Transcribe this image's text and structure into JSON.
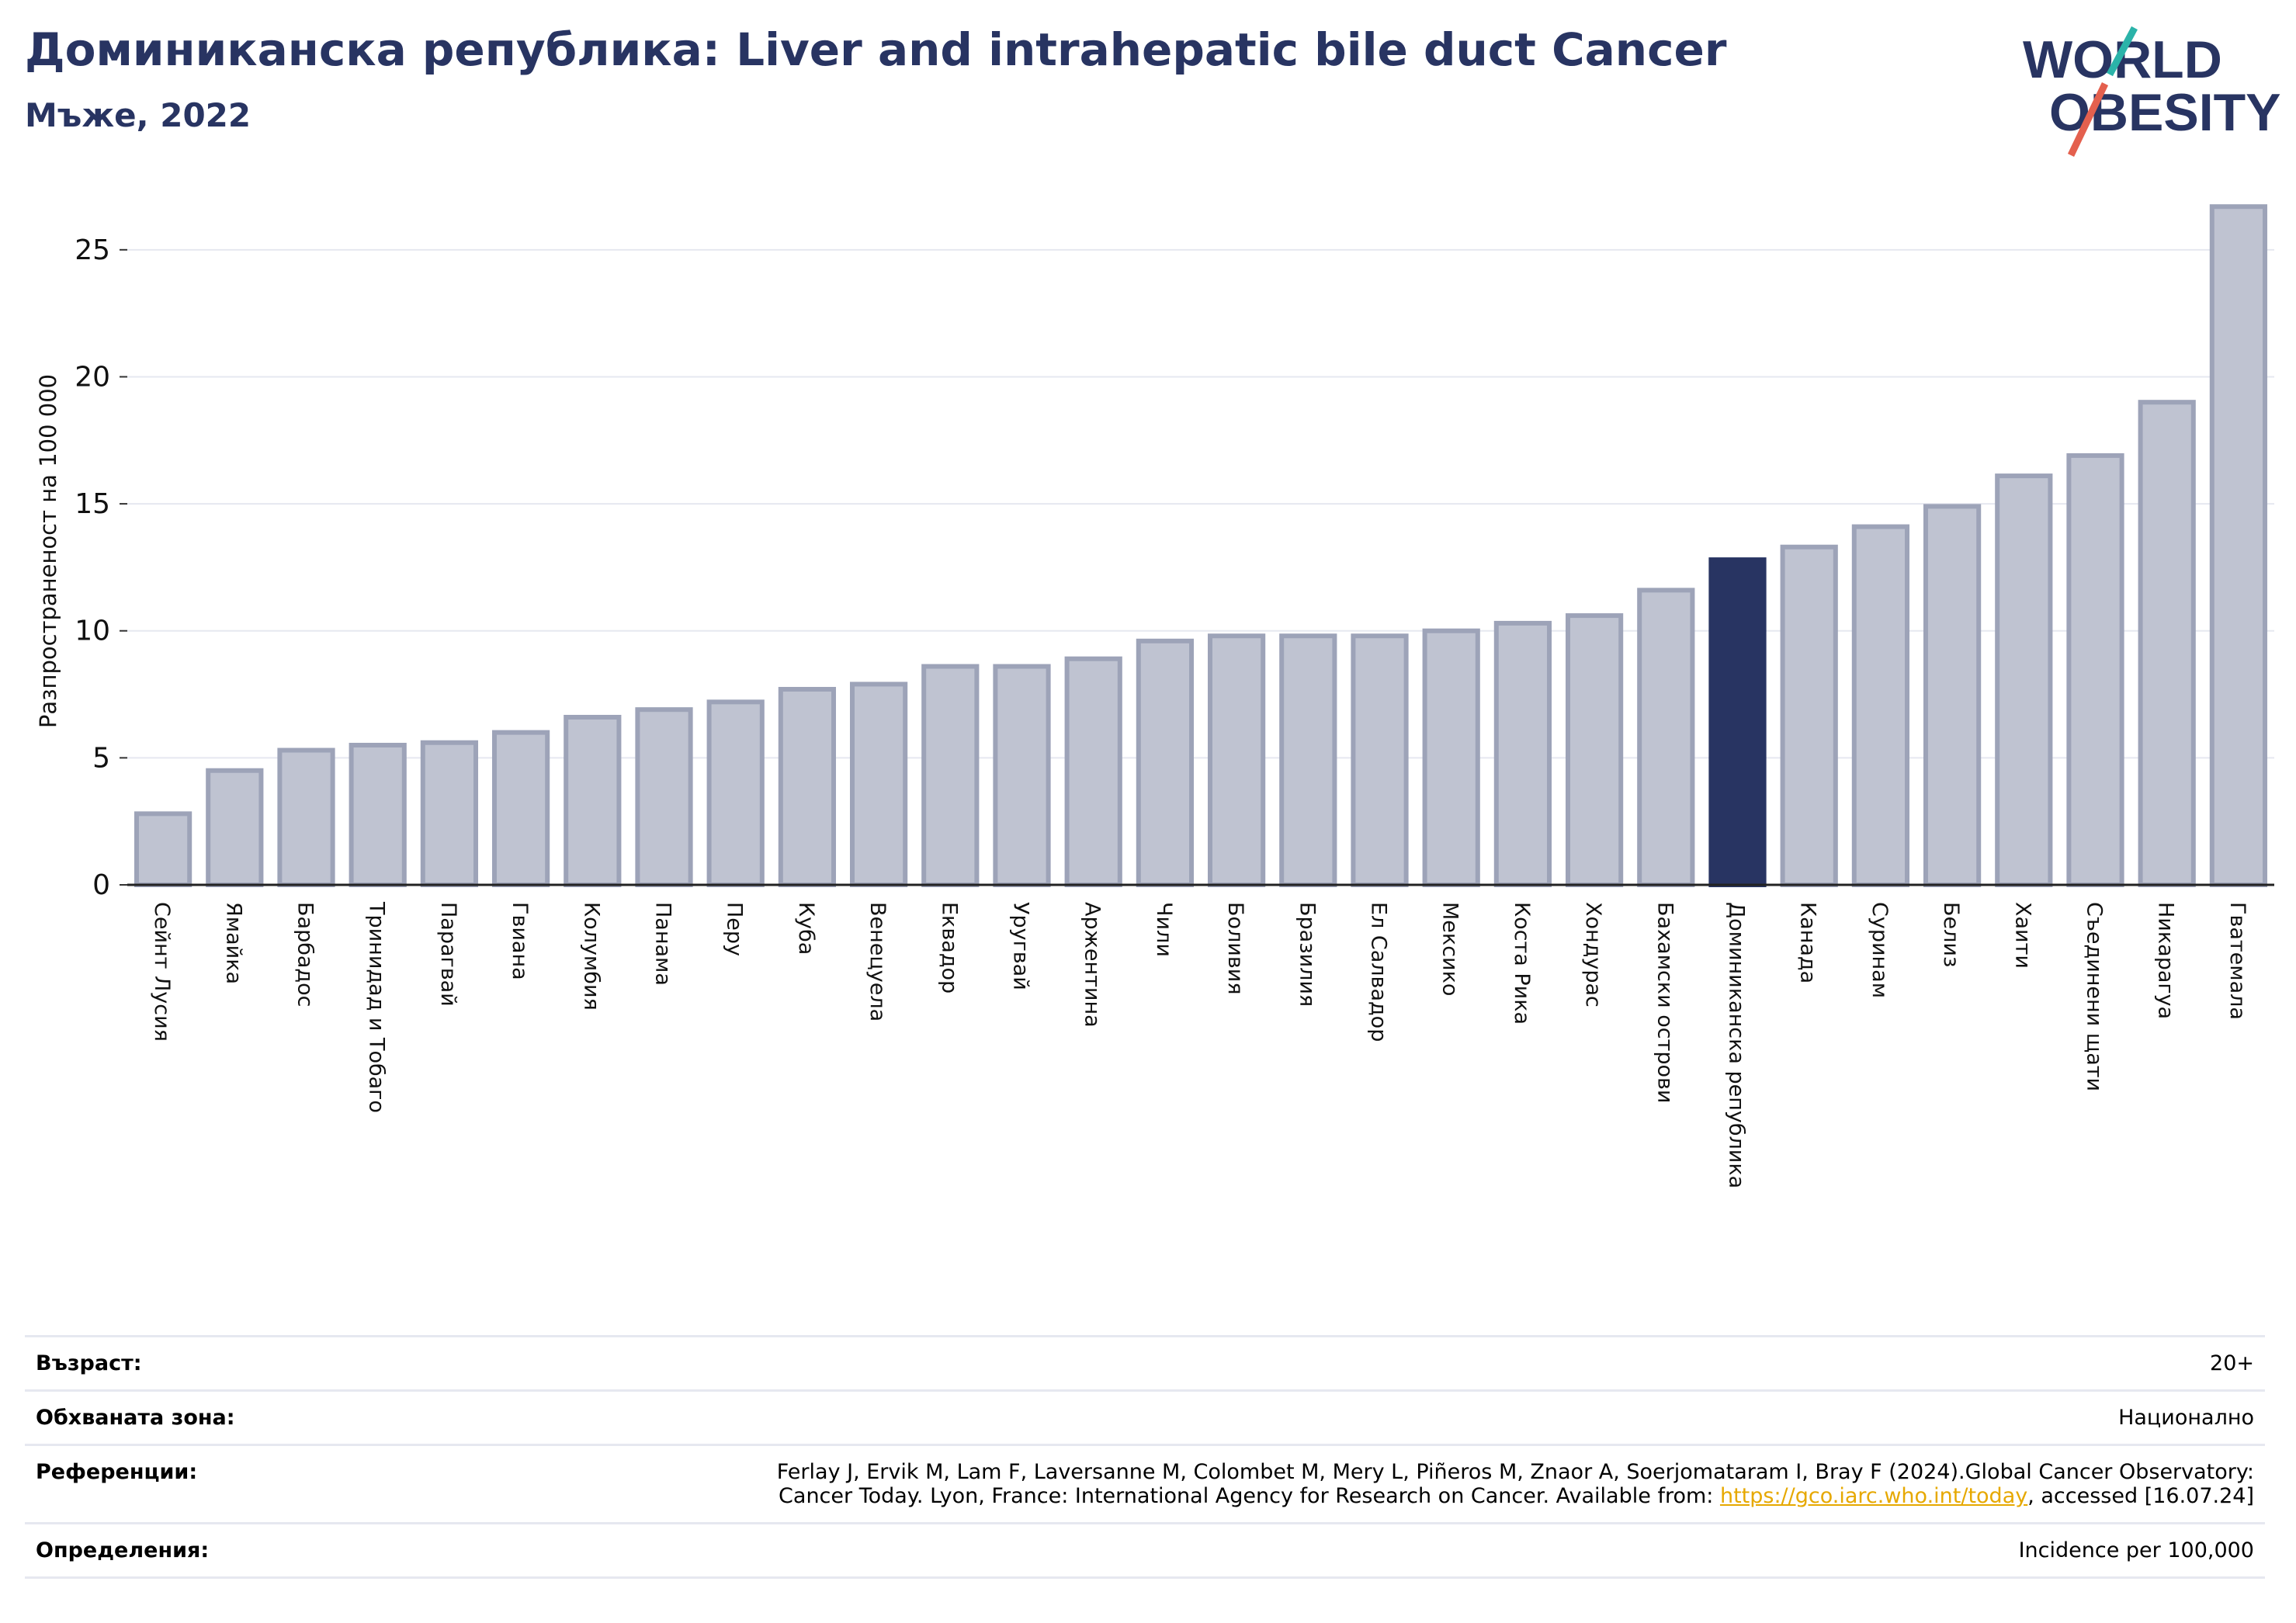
{
  "header": {
    "title": "Доминиканска република: Liver and intrahepatic bile duct Cancer",
    "subtitle": "Мъже, 2022"
  },
  "logo": {
    "line1": "WORLD",
    "line2": "OBESITY"
  },
  "colors": {
    "bar": "#bfc3d1",
    "bar_edge": "#9da3b8",
    "highlight": "#283462",
    "title": "#283462"
  },
  "chart_data": {
    "type": "bar",
    "ylabel": "Разпространеност  на 100 000",
    "ylim": [
      0,
      27.5
    ],
    "yticks": [
      0,
      5,
      10,
      15,
      20,
      25
    ],
    "grid": true,
    "highlight": "Доминиканска република",
    "categories": [
      "Сейнт Лусия",
      "Ямайка",
      "Барбадос",
      "Тринидад и Тобаго",
      "Парагвай",
      "Гвиана",
      "Колумбия",
      "Панама",
      "Перу",
      "Куба",
      "Венецуела",
      "Еквадор",
      "Уругвай",
      "Аржентина",
      "Чили",
      "Боливия",
      "Бразилия",
      "Ел Салвадор",
      "Мексико",
      "Коста Рика",
      "Хондурас",
      "Бахамски острови",
      "Доминиканска република",
      "Канада",
      "Суринам",
      "Белиз",
      "Хаити",
      "Съединени щати",
      "Никарагуа",
      "Гватемала"
    ],
    "values": [
      2.8,
      4.5,
      5.3,
      5.5,
      5.6,
      6.0,
      6.6,
      6.9,
      7.2,
      7.7,
      7.9,
      8.6,
      8.6,
      8.9,
      9.6,
      9.8,
      9.8,
      9.8,
      10.0,
      10.3,
      10.6,
      11.6,
      12.8,
      13.3,
      14.1,
      14.9,
      16.1,
      16.9,
      19.0,
      26.7
    ]
  },
  "footer": {
    "age_label": "Възраст:",
    "age_value": "20+",
    "area_label": "Обхваната зона:",
    "area_value": "Национално",
    "refs_label": "Референции:",
    "refs_line1": "Ferlay J, Ervik M, Lam F, Laversanne M, Colombet M, Mery L, Piñeros M, Znaor A, Soerjomataram I, Bray F (2024).Global Cancer Observatory:",
    "refs_line2_pre": "Cancer Today. Lyon, France: International Agency for Research on Cancer. Available from: ",
    "refs_link": "https://gco.iarc.who.int/today",
    "refs_line2_post": ", accessed [16.07.24]",
    "defs_label": "Определения:",
    "defs_value": "Incidence per 100,000"
  }
}
